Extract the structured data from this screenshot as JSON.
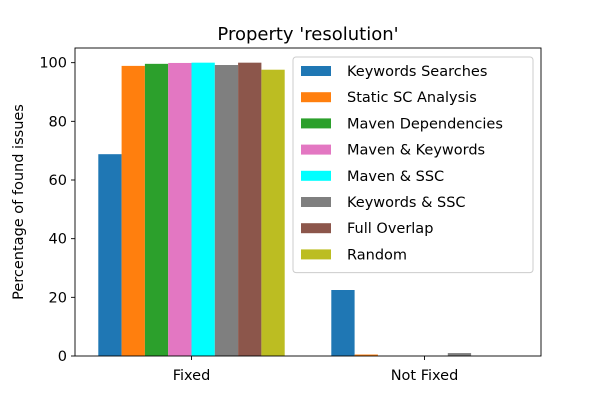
{
  "chart_data": {
    "type": "bar",
    "title": "Property 'resolution'",
    "xlabel": "",
    "ylabel": "Percentage of found issues",
    "categories": [
      "Fixed",
      "Not Fixed"
    ],
    "ylim": [
      0,
      105
    ],
    "yticks": [
      0,
      20,
      40,
      60,
      80,
      100
    ],
    "grid": false,
    "legend_position": "top-right",
    "series": [
      {
        "name": "Keywords Searches",
        "color": "#1f77b4",
        "values": [
          68.8,
          22.5
        ]
      },
      {
        "name": "Static SC Analysis",
        "color": "#ff7f0e",
        "values": [
          98.9,
          0.5
        ]
      },
      {
        "name": "Maven Dependencies",
        "color": "#2ca02c",
        "values": [
          99.6,
          0
        ]
      },
      {
        "name": "Maven & Keywords",
        "color": "#e377c2",
        "values": [
          99.9,
          0
        ]
      },
      {
        "name": "Maven & SSC",
        "color": "#00ffff",
        "values": [
          100,
          0
        ]
      },
      {
        "name": "Keywords & SSC",
        "color": "#7f7f7f",
        "values": [
          99.2,
          1.0
        ]
      },
      {
        "name": "Full Overlap",
        "color": "#8c564b",
        "values": [
          100,
          0
        ]
      },
      {
        "name": "Random",
        "color": "#bcbd22",
        "values": [
          97.6,
          0
        ]
      }
    ]
  }
}
